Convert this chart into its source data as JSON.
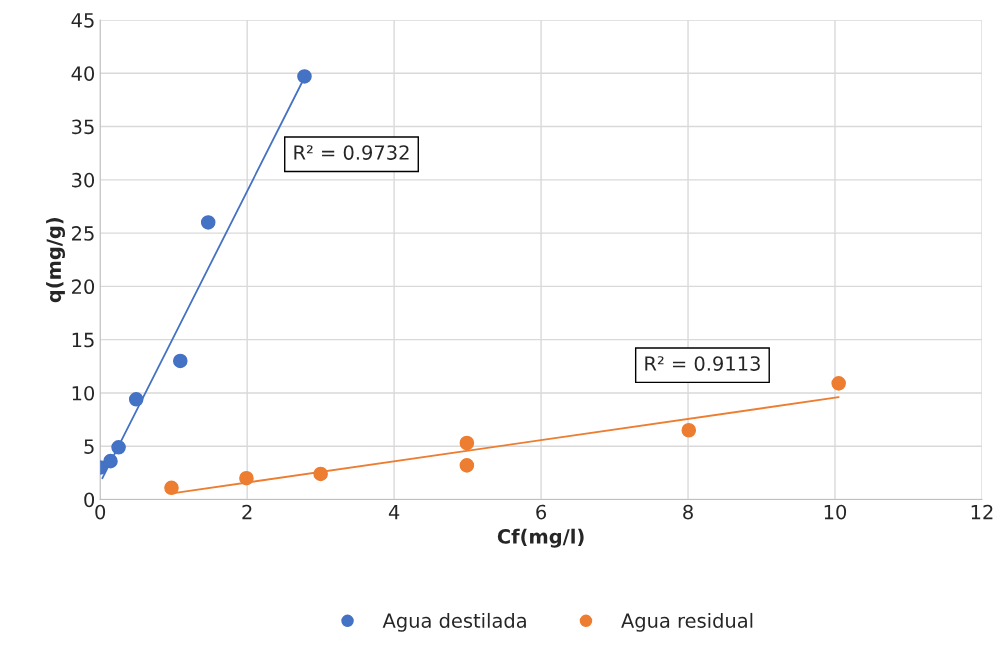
{
  "chart_data": {
    "type": "scatter",
    "xlabel": "Cf(mg/l)",
    "ylabel": "q(mg/g)",
    "xlim": [
      0,
      12
    ],
    "xticks": [
      0,
      2,
      4,
      6,
      8,
      10,
      12
    ],
    "ylim": [
      0,
      45
    ],
    "yticks": [
      0,
      5,
      10,
      15,
      20,
      25,
      30,
      35,
      40,
      45
    ],
    "grid": true,
    "legend": "bottom",
    "series": [
      {
        "name": "Agua destilada",
        "color": "#4472c4",
        "x": [
          0,
          0.14,
          0.25,
          0.49,
          1.09,
          1.47,
          2.78
        ],
        "values": [
          3.0,
          3.6,
          4.9,
          9.4,
          13.0,
          26.0,
          39.7
        ],
        "marker": "circle"
      },
      {
        "name": "Agua residual",
        "color": "#ed7d31",
        "x": [
          0.97,
          1.99,
          3.0,
          4.99,
          4.99,
          8.01,
          10.05
        ],
        "values": [
          1.1,
          2.0,
          2.4,
          5.3,
          3.2,
          6.5,
          10.9
        ],
        "marker": "circle"
      },
      {
        "type": "line",
        "color": "#4472c4",
        "x": [
          0.03,
          2.78
        ],
        "values": [
          2.0,
          39.6
        ],
        "marker": "none"
      },
      {
        "type": "line",
        "color": "#ed7d31",
        "x": [
          1.0,
          10.05
        ],
        "values": [
          0.6,
          9.6
        ],
        "marker": "none"
      }
    ],
    "annotations": [
      "R² = 0.9732",
      "R² = 0.9113"
    ]
  }
}
